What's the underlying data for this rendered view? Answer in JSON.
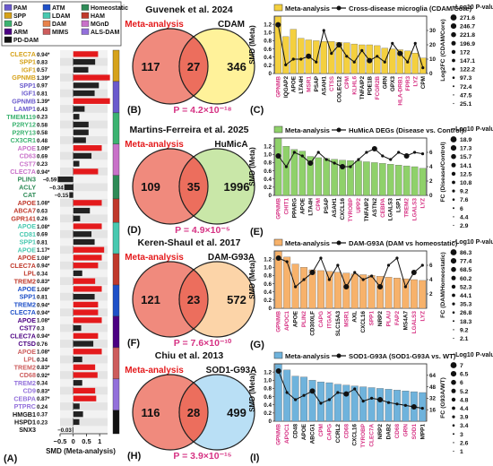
{
  "panel_letters": [
    "(A)",
    "(B)",
    "(C)",
    "(D)",
    "(E)",
    "(F)",
    "(G)",
    "(H)",
    "(I)"
  ],
  "legend_a": [
    {
      "label": "PAM",
      "color": "#6a5acd"
    },
    {
      "label": "ATM",
      "color": "#1e50c8"
    },
    {
      "label": "Homeostatic",
      "color": "#2e8b57"
    },
    {
      "label": "SPP",
      "color": "#d6a21a"
    },
    {
      "label": "LDAM",
      "color": "#48c9b0"
    },
    {
      "label": "HAM",
      "color": "#c0392b"
    },
    {
      "label": "AD",
      "color": "#3cb371"
    },
    {
      "label": "DAM",
      "color": "#e8824a"
    },
    {
      "label": "MGnD",
      "color": "#c971c9"
    },
    {
      "label": "ARM",
      "color": "#4b0082"
    },
    {
      "label": "MIMS",
      "color": "#cd5c5c"
    },
    {
      "label": "ALS-DAM",
      "color": "#9370db"
    },
    {
      "label": "PD-DAM",
      "color": "#111111"
    }
  ],
  "chart_data": [
    {
      "type": "bar",
      "panel": "A",
      "orientation": "horizontal",
      "xlabel": "SMD (Meta-analysis)",
      "xlim": [
        -0.5,
        1.3
      ],
      "xticks": [
        "−0.5",
        "0",
        "0.5",
        "1"
      ],
      "categories": [
        "CLEC7A",
        "SPP1",
        "IGF1",
        "GPNMB",
        "SPP1",
        "IGF1",
        "GPNMB",
        "LAMP1",
        "TMEM119",
        "P2RY12",
        "P2RY13",
        "CX3CR1",
        "APOE",
        "CD63",
        "CST7",
        "CLEC7A",
        "PLIN3",
        "ACLY",
        "CAT",
        "APOE",
        "ABCA7",
        "GPR141",
        "APOE",
        "CD81",
        "SPP1",
        "APOE",
        "APOE",
        "CLEC7A",
        "LPL",
        "TREM2",
        "APOE",
        "SPP1",
        "TREM2",
        "CLEC7A",
        "APOE",
        "CST7",
        "CLEC7A",
        "CTSD",
        "APOE",
        "LPL",
        "TREM2",
        "CD68",
        "TREM2",
        "CD9",
        "CEBPA",
        "PTPRC",
        "HMGB1",
        "HSPD1",
        "SNX3"
      ],
      "label_colors": [
        "#d6a21a",
        "#d6a21a",
        "#d6a21a",
        "#d6a21a",
        "#6a5acd",
        "#6a5acd",
        "#6a5acd",
        "#6a5acd",
        "#3cb371",
        "#3cb371",
        "#3cb371",
        "#3cb371",
        "#c971c9",
        "#c971c9",
        "#c971c9",
        "#c971c9",
        "#2e8b57",
        "#2e8b57",
        "#2e8b57",
        "#c0392b",
        "#c0392b",
        "#c0392b",
        "#48c9b0",
        "#48c9b0",
        "#48c9b0",
        "#48c9b0",
        "#c0392b",
        "#c0392b",
        "#c0392b",
        "#c0392b",
        "#1e50c8",
        "#1e50c8",
        "#1e50c8",
        "#1e50c8",
        "#4b0082",
        "#4b0082",
        "#4b0082",
        "#4b0082",
        "#cd5c5c",
        "#cd5c5c",
        "#cd5c5c",
        "#cd5c5c",
        "#9370db",
        "#9370db",
        "#9370db",
        "#9370db",
        "#111111",
        "#111111",
        "#111111"
      ],
      "values": [
        0.94,
        0.83,
        0.57,
        1.39,
        0.97,
        0.81,
        1.39,
        0.43,
        0.23,
        0.58,
        0.58,
        0.48,
        1.08,
        0.69,
        0.23,
        0.94,
        -0.59,
        -0.34,
        -0.15,
        1.08,
        0.63,
        0.26,
        1.08,
        0.69,
        0.81,
        1.17,
        1.08,
        0.94,
        0.34,
        0.83,
        1.08,
        0.81,
        0.94,
        0.94,
        1.08,
        0.3,
        0.94,
        0.76,
        1.08,
        0.34,
        0.83,
        0.92,
        0.34,
        0.83,
        0.87,
        0.24,
        0.37,
        0.23,
        -0.03
      ],
      "value_labels": [
        "0.94*",
        "0.83",
        "0.57",
        "1.39*",
        "0.97",
        "0.81",
        "1.39*",
        "0.43",
        "0.23",
        "0.58",
        "0.58",
        "0.48",
        "1.08*",
        "0.69",
        "0.23",
        "0.94*",
        "−0.59",
        "−0.34",
        "−0.15",
        "1.08*",
        "0.63",
        "0.26",
        "1.08*",
        "0.69",
        "0.81",
        "1.17*",
        "1.08*",
        "0.94*",
        "0.34",
        "0.83*",
        "1.08*",
        "0.81",
        "0.94*",
        "0.94*",
        "1.08*",
        "0.3",
        "0.94*",
        "0.76",
        "1.08*",
        "0.34",
        "0.83*",
        "0.92*",
        "0.34",
        "0.83*",
        "0.87*",
        "0.24",
        "0.37",
        "0.23",
        "−0.03"
      ],
      "significant": [
        1,
        0,
        0,
        1,
        0,
        0,
        1,
        0,
        0,
        0,
        0,
        0,
        1,
        0,
        0,
        1,
        0,
        0,
        0,
        1,
        0,
        0,
        1,
        0,
        0,
        1,
        1,
        1,
        0,
        1,
        1,
        0,
        1,
        1,
        1,
        0,
        1,
        0,
        1,
        0,
        1,
        1,
        0,
        1,
        1,
        0,
        0,
        0,
        0
      ],
      "colors": {
        "significant": "#e41a1c",
        "not_significant": "#222222"
      }
    },
    {
      "type": "venn",
      "panel": "B",
      "title": "Guvenek et al. 2024",
      "sets": [
        "Meta-analysis",
        "CDAM"
      ],
      "counts": {
        "left_only": 117,
        "overlap": 27,
        "right_only": 346
      },
      "p_value": "P = 4.2×10⁻¹⁸",
      "colors": {
        "left": "#f08a7d",
        "right": "#fff29a",
        "overlap": "#ec6e5d"
      }
    },
    {
      "type": "venn",
      "panel": "D",
      "title": "Martins-Ferreira et al. 2025",
      "sets": [
        "Meta-analysis",
        "HuMicA"
      ],
      "counts": {
        "left_only": 109,
        "overlap": 35,
        "right_only": 1996
      },
      "p_value": "P = 4.9×10⁻⁵",
      "colors": {
        "left": "#f08a7d",
        "right": "#c9e7a8",
        "overlap": "#ec6e5d"
      }
    },
    {
      "type": "venn",
      "panel": "F",
      "title": "Keren-Shaul et al. 2017",
      "sets": [
        "Meta-analysis",
        "DAM-G93A"
      ],
      "counts": {
        "left_only": 121,
        "overlap": 23,
        "right_only": 572
      },
      "p_value": "P = 7.6×10⁻¹⁰",
      "colors": {
        "left": "#f08a7d",
        "right": "#fcd4a8",
        "overlap": "#ec6e5d"
      }
    },
    {
      "type": "venn",
      "panel": "H",
      "title": "Chiu et al. 2013",
      "sets": [
        "Meta-analysis",
        "SOD1-G93A"
      ],
      "counts": {
        "left_only": 116,
        "overlap": 28,
        "right_only": 499
      },
      "p_value": "P = 3.9×10⁻¹⁵",
      "colors": {
        "left": "#f08a7d",
        "right": "#b9dff5",
        "overlap": "#ec6e5d"
      }
    },
    {
      "type": "bar",
      "panel": "C",
      "legend": [
        "Meta-analysis",
        "Cross-disease microglia (CDAM/Core)"
      ],
      "ylabel": "SMD (Meta)",
      "y2label": "Log2FC (CDAM/Core)",
      "ylim": [
        0,
        1.4
      ],
      "yticks": [
        "0",
        "0.2",
        "0.4",
        "0.6",
        "0.8",
        "1.0",
        "1.2"
      ],
      "y2lim": [
        0,
        40
      ],
      "y2ticks": [
        "0",
        "10",
        "20",
        "30"
      ],
      "bar_color": "#f4d03f",
      "categories": [
        "GPNMB",
        "IQGAP2",
        "APOE",
        "LTA4H",
        "MSR1",
        "PSAP",
        "ASAH1",
        "CTSS",
        "COLEC12",
        "CPM",
        "KLHL6",
        "TNFAIP2",
        "PDE1B",
        "FCGR2B",
        "GRN",
        "GPX3",
        "HLA-DRB1",
        "FPR3",
        "LYZ",
        "CPM"
      ],
      "label_colors": [
        "#d63384",
        "#111",
        "#111",
        "#111",
        "#d63384",
        "#111",
        "#111",
        "#d63384",
        "#111",
        "#d63384",
        "#d63384",
        "#111",
        "#111",
        "#d63384",
        "#111",
        "#111",
        "#d63384",
        "#d63384",
        "#d63384",
        "#111"
      ],
      "values": [
        1.39,
        0.9,
        1.08,
        0.86,
        0.82,
        0.8,
        0.78,
        0.78,
        0.76,
        0.75,
        0.72,
        0.7,
        0.7,
        0.68,
        0.62,
        0.6,
        0.58,
        0.55,
        0.5,
        0.38
      ],
      "line_values": [
        34,
        6,
        10,
        10,
        12,
        8,
        30,
        14,
        20,
        12,
        8,
        16,
        9,
        12,
        8,
        21,
        14,
        8,
        21,
        4
      ],
      "pvalue_legend_title": "−Log10 P-value",
      "pvalue_legend": [
        "271.6",
        "246.7",
        "221.8",
        "196.9",
        "172",
        "147.1",
        "122.2",
        "97.3",
        "72.4",
        "47.5",
        "25.1"
      ]
    },
    {
      "type": "bar",
      "panel": "E",
      "legend": [
        "Meta-analysis",
        "HuMicA DEGs (Disease vs. Control)"
      ],
      "ylabel": "SMD (Meta)",
      "y2label": "FC (Disease/Control)",
      "ylim": [
        0,
        1.4
      ],
      "yticks": [
        "0",
        "0.2",
        "0.4",
        "0.6",
        "0.8",
        "1.0",
        "1.2"
      ],
      "y2lim": [
        0,
        8
      ],
      "y2ticks": [
        "0",
        "2",
        "4",
        "6"
      ],
      "bar_color": "#8fd16a",
      "categories": [
        "GPNMB",
        "CHIT1",
        "PPARG",
        "APOE",
        "LTA4H",
        "CPM",
        "PSAP",
        "ASAH1",
        "CXCL16",
        "TYROBP",
        "UPP2",
        "TNFAIP2",
        "ASTN2",
        "CEBPA",
        "LGALS3",
        "LSP1",
        "TREM2",
        "LGALS3",
        "LYZ"
      ],
      "label_colors": [
        "#d63384",
        "#d63384",
        "#111",
        "#111",
        "#111",
        "#d63384",
        "#111",
        "#111",
        "#111",
        "#d63384",
        "#d63384",
        "#111",
        "#111",
        "#d63384",
        "#111",
        "#111",
        "#d63384",
        "#d63384",
        "#d63384"
      ],
      "values": [
        1.39,
        1.2,
        1.12,
        1.08,
        0.95,
        0.92,
        0.9,
        0.88,
        0.86,
        0.85,
        0.84,
        0.82,
        0.8,
        0.78,
        0.76,
        0.74,
        0.72,
        0.7,
        0.66
      ],
      "line_values": [
        5.5,
        4,
        6,
        5.5,
        4.5,
        6,
        5,
        4.5,
        4,
        4,
        5,
        6,
        6.5,
        5.5,
        5,
        6,
        5.5,
        6,
        5.8
      ],
      "pvalue_legend_title": "−Log10 P-value",
      "pvalue_legend": [
        "18.9",
        "17.3",
        "15.7",
        "14.1",
        "12.5",
        "10.8",
        "9.2",
        "7.6",
        "6",
        "4.4",
        "2.9"
      ]
    },
    {
      "type": "bar",
      "panel": "G",
      "legend": [
        "Meta-analysis",
        "DAM-G93A (DAM vs homeostatic)"
      ],
      "ylabel": "SMD (Meta)",
      "y2label": "FC (DAM/Homeostatic)",
      "ylim": [
        0,
        1.4
      ],
      "yticks": [
        "0",
        "0.2",
        "0.4",
        "0.6",
        "0.8",
        "1.0",
        "1.2"
      ],
      "y2lim": [
        0,
        8
      ],
      "y2ticks": [
        "2",
        "4",
        "6"
      ],
      "bar_color": "#f7b26b",
      "categories": [
        "GPNMB",
        "APOC1",
        "APOE",
        "PLIN2",
        "CD300LF",
        "CAPG",
        "ITGAX",
        "SLC15A3",
        "MSR1",
        "AXL",
        "CXCL16",
        "SPP1",
        "NRP2",
        "PLAU",
        "FAP2",
        "MS4A7",
        "LGALS3",
        "LYZ"
      ],
      "label_colors": [
        "#d63384",
        "#d63384",
        "#111",
        "#d63384",
        "#111",
        "#d63384",
        "#d63384",
        "#111",
        "#d63384",
        "#111",
        "#111",
        "#d63384",
        "#111",
        "#d63384",
        "#d63384",
        "#111",
        "#d63384",
        "#d63384"
      ],
      "values": [
        1.39,
        1.25,
        1.08,
        1.0,
        0.94,
        0.92,
        0.9,
        0.88,
        0.86,
        0.84,
        0.82,
        0.8,
        0.78,
        0.76,
        0.74,
        0.72,
        0.7,
        0.68
      ],
      "line_values": [
        7,
        6.5,
        3,
        4,
        5,
        7,
        4,
        6,
        3,
        5,
        4,
        4.5,
        3,
        6,
        7,
        3,
        5,
        6
      ],
      "pvalue_legend_title": "−Log10 P-value",
      "pvalue_legend": [
        "86.3",
        "77.4",
        "68.5",
        "60.2",
        "52.3",
        "44.1",
        "35.3",
        "26.8",
        "18.3",
        "9.2",
        "2.1"
      ]
    },
    {
      "type": "bar",
      "panel": "I",
      "legend": [
        "Meta-analysis",
        "SOD1-G93A (SOD1-G93A vs. WT)"
      ],
      "ylabel": "SMD (Meta)",
      "y2label": "FC (G93A/WT)",
      "ylim": [
        0,
        1.4
      ],
      "yticks": [
        "0",
        "0.2",
        "0.4",
        "0.6",
        "0.8",
        "1.0",
        "1.2"
      ],
      "y2lim": [
        0,
        80
      ],
      "y2ticks": [
        "16",
        "32",
        "48",
        "64"
      ],
      "bar_color": "#6fb3dc",
      "categories": [
        "GPNMB",
        "APOC1",
        "CD48",
        "APOE",
        "ABCG1",
        "CPM",
        "CAPG",
        "CCRL2",
        "CD68",
        "CXCL16",
        "TYROBP",
        "CLEC7A",
        "NRP2",
        "DAB2",
        "CD68",
        "GRN",
        "SOD1",
        "MPP1"
      ],
      "label_colors": [
        "#d63384",
        "#d63384",
        "#111",
        "#111",
        "#111",
        "#d63384",
        "#d63384",
        "#111",
        "#d63384",
        "#111",
        "#d63384",
        "#d63384",
        "#111",
        "#111",
        "#d63384",
        "#d63384",
        "#d63384",
        "#111"
      ],
      "values": [
        1.39,
        1.25,
        1.1,
        1.08,
        1.0,
        0.96,
        0.94,
        0.9,
        0.88,
        0.86,
        0.84,
        0.82,
        0.8,
        0.78,
        0.76,
        0.74,
        0.72,
        0.7
      ],
      "line_values": [
        70,
        40,
        30,
        36,
        42,
        25,
        30,
        40,
        38,
        45,
        28,
        32,
        30,
        26,
        24,
        22,
        20,
        18
      ],
      "pvalue_legend_title": "−Log10 P-value",
      "pvalue_legend": [
        "7",
        "6.5",
        "6",
        "5.2",
        "4.8",
        "4.4",
        "3.9",
        "3.4",
        "3",
        "2.6",
        "1"
      ]
    }
  ]
}
